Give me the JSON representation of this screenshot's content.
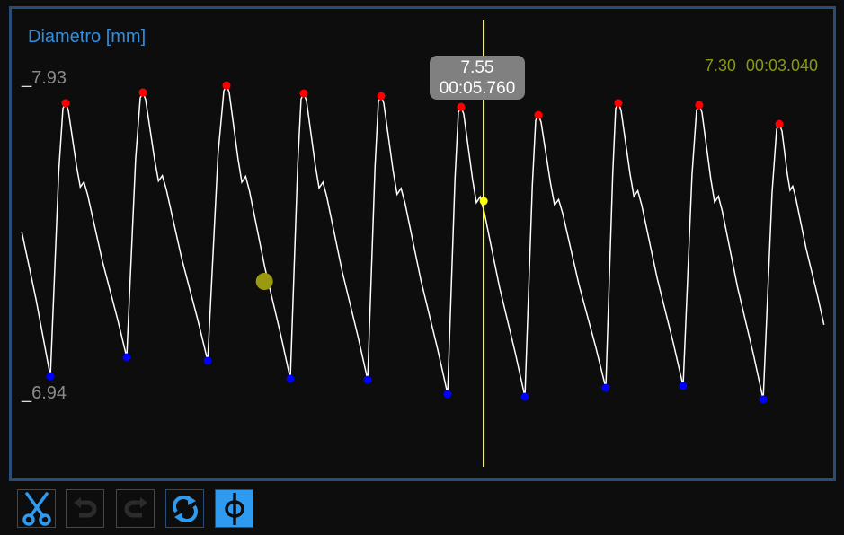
{
  "chart_title": "Diametro [mm]",
  "y_axis": {
    "max_label": "7.93",
    "min_label": "6.94",
    "max": 7.93,
    "min": 6.94
  },
  "readout": {
    "value": "7.30",
    "time": "00:03.040",
    "marker_color": "#9a9a10"
  },
  "cursor": {
    "value": "7.55",
    "time": "00:05.760",
    "color": "#ffff00"
  },
  "colors": {
    "peak": "#ff0000",
    "trough": "#0000ff",
    "trace": "#ffffff",
    "accent": "#2f9bf0",
    "frame": "#2a4d75"
  },
  "chart_data": {
    "type": "line",
    "ylim": [
      6.94,
      7.93
    ],
    "x_unit": "s",
    "start": [
      0.03,
      7.455
    ],
    "end": [
      9.98,
      7.165
    ],
    "peaks": [
      [
        0.574,
        7.855
      ],
      [
        1.533,
        7.888
      ],
      [
        2.57,
        7.91
      ],
      [
        3.528,
        7.885
      ],
      [
        4.487,
        7.877
      ],
      [
        5.479,
        7.843
      ],
      [
        6.438,
        7.818
      ],
      [
        7.43,
        7.855
      ],
      [
        8.433,
        7.849
      ],
      [
        9.426,
        7.79
      ]
    ],
    "troughs": [
      [
        0.385,
        7.005
      ],
      [
        1.332,
        7.064
      ],
      [
        2.336,
        7.053
      ],
      [
        3.361,
        6.997
      ],
      [
        4.32,
        6.994
      ],
      [
        5.312,
        6.95
      ],
      [
        6.271,
        6.941
      ],
      [
        7.274,
        6.969
      ],
      [
        8.233,
        6.975
      ],
      [
        9.226,
        6.933
      ]
    ],
    "cursor_point": [
      5.76,
      7.55
    ],
    "readout_point": [
      3.04,
      7.3
    ]
  },
  "toolbar": [
    {
      "name": "cut",
      "enabled": true,
      "active": false
    },
    {
      "name": "undo",
      "enabled": false,
      "active": false
    },
    {
      "name": "redo",
      "enabled": false,
      "active": false
    },
    {
      "name": "refresh",
      "enabled": true,
      "active": false
    },
    {
      "name": "diameter",
      "enabled": true,
      "active": true
    }
  ]
}
